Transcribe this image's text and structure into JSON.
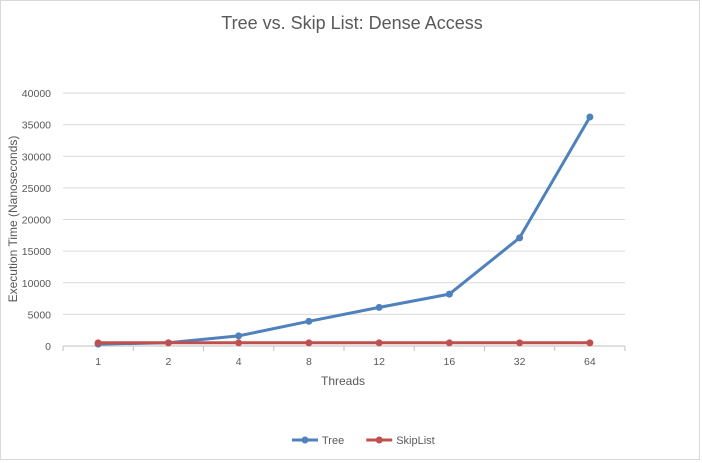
{
  "chart_data": {
    "type": "line",
    "title": "Tree vs. Skip List: Dense Access",
    "xlabel": "Threads",
    "ylabel": "Execution Time (Nanoseconds)",
    "categories": [
      "1",
      "2",
      "4",
      "8",
      "12",
      "16",
      "32",
      "64"
    ],
    "ylim": [
      0,
      40000
    ],
    "yticks": [
      0,
      5000,
      10000,
      15000,
      20000,
      25000,
      30000,
      35000,
      40000
    ],
    "grid": true,
    "legend_position": "bottom",
    "series": [
      {
        "name": "Tree",
        "color": "#4f81bd",
        "values": [
          300,
          500,
          1600,
          3900,
          6100,
          8200,
          17100,
          36200
        ]
      },
      {
        "name": "SkipList",
        "color": "#c0504d",
        "values": [
          500,
          500,
          500,
          500,
          500,
          500,
          500,
          500
        ]
      }
    ]
  }
}
